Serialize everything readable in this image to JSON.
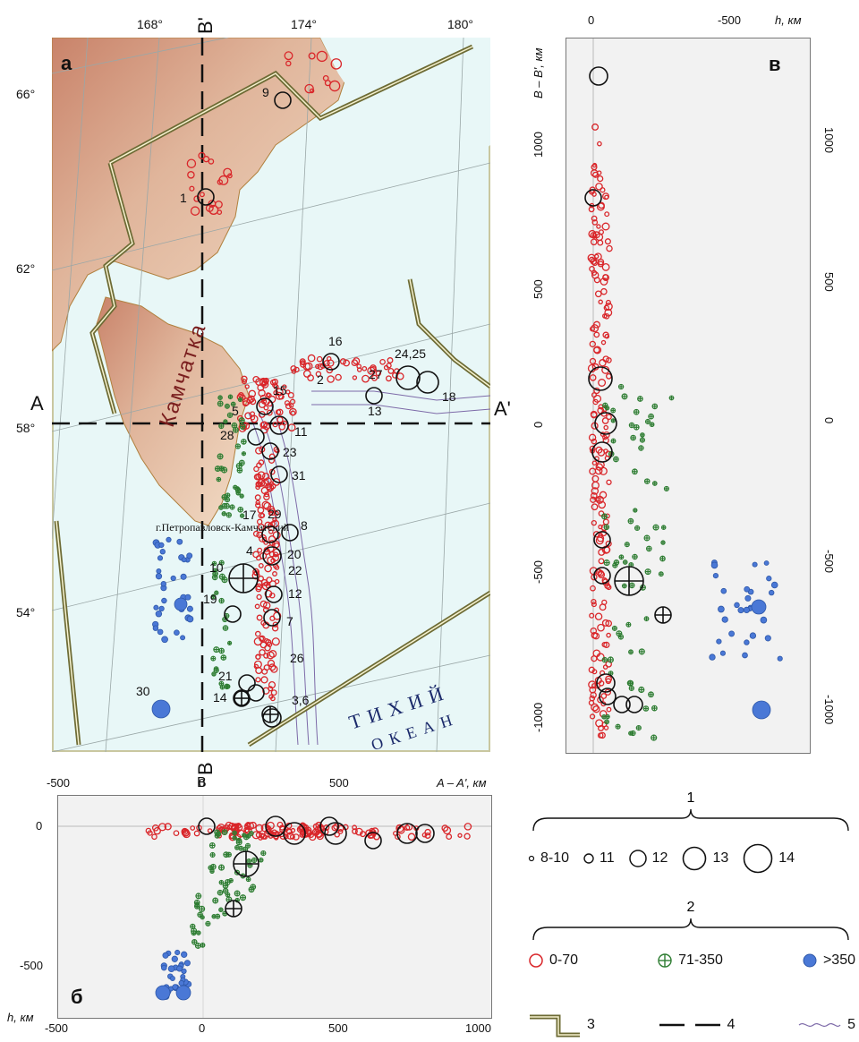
{
  "panels": {
    "a": {
      "letter": "а",
      "lon_labels": [
        "168°",
        "174°",
        "180°"
      ],
      "lat_labels": [
        "66°",
        "62°",
        "58°",
        "54°"
      ],
      "profile_AA": {
        "start": "A",
        "end": "A'"
      },
      "profile_BB": {
        "top": "B'",
        "bottom": "B"
      },
      "peninsula_label": "Камчатка",
      "city_label": "г.Петропавловск-Камчатский",
      "ocean_label_1": "ТИХИЙ",
      "ocean_label_2": "ОКЕАН",
      "event_numbers": [
        "9",
        "1",
        "16",
        "24,25",
        "27",
        "2",
        "18",
        "13",
        "15",
        "5",
        "11",
        "28",
        "23",
        "31",
        "17",
        "29",
        "8",
        "4",
        "20",
        "10",
        "22",
        "12",
        "19",
        "7",
        "26",
        "21",
        "14",
        "3,6",
        "30"
      ]
    },
    "b": {
      "letter": "б",
      "axis_title": "A – A', км",
      "top_ticks": [
        "-500",
        "0",
        "500"
      ],
      "bottom_ticks": [
        "-500",
        "0",
        "500",
        "1000"
      ],
      "left_ticks": [
        "0",
        "-500"
      ],
      "y_title": "h, км",
      "top_marker": "B"
    },
    "v": {
      "letter": "в",
      "axis_title": "h, км",
      "top_ticks": [
        "0",
        "-500"
      ],
      "y_title": "B – B', км",
      "y_ticks": [
        "1000",
        "500",
        "0",
        "-500",
        "-1000"
      ]
    }
  },
  "legend": {
    "group1": {
      "number": "1",
      "items": [
        "8-10",
        "11",
        "12",
        "13",
        "14"
      ]
    },
    "group2": {
      "number": "2",
      "items": [
        "0-70",
        "71-350",
        ">350"
      ]
    },
    "item3": "3",
    "item4": "4",
    "item5": "5"
  },
  "colors": {
    "shallow": "#d9262a",
    "intermediate": "#2e7d32",
    "deep": "#4a78d6",
    "frame": "#6d6b35",
    "sea": "#e8f7f7",
    "panel_bg": "#f2f2f2"
  }
}
